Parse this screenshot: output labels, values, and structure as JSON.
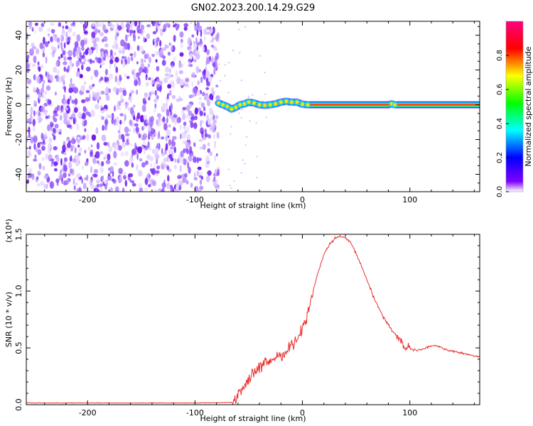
{
  "title": "GN02.2023.200.14.29.G29",
  "chart_data": [
    {
      "type": "heatmap",
      "xlabel": "Height of straight line (km)",
      "ylabel": "Frequency (Hz)",
      "xlim": [
        -257,
        165
      ],
      "ylim": [
        -50,
        48
      ],
      "x_ticks": [
        -200,
        -100,
        0,
        100
      ],
      "x_tick_labels": [
        "-200",
        "-100",
        "0",
        "100"
      ],
      "y_ticks": [
        -40,
        -20,
        0,
        20,
        40
      ],
      "y_tick_labels": [
        "-40",
        "-20",
        "0",
        "20",
        "40"
      ],
      "noise_region_x": [
        -257,
        -78
      ],
      "signal_track": {
        "x": [
          -78,
          -74,
          -70,
          -66,
          -62,
          -58,
          -54,
          -50,
          -45,
          -40,
          -35,
          -30,
          -25,
          -20,
          -15,
          -10,
          -5,
          0,
          5,
          20,
          40,
          60,
          80,
          83,
          86,
          100,
          120,
          140,
          165
        ],
        "freq": [
          1,
          0,
          -1,
          -2.5,
          -1.5,
          0,
          0.5,
          1.5,
          1,
          0,
          -0.3,
          0,
          0.5,
          1.5,
          2,
          1.5,
          1.5,
          0.3,
          0,
          0,
          0,
          0,
          0,
          0.5,
          0,
          0,
          0,
          0,
          0
        ]
      },
      "colorbar": {
        "label": "Normalized spectral amplitude",
        "range": [
          0,
          1
        ],
        "ticks": [
          0.0,
          0.2,
          0.4,
          0.6,
          0.8
        ],
        "tick_labels": [
          "0.0",
          "0.2",
          "0.4",
          "0.6",
          "0.8"
        ],
        "colors": [
          "#ffffff",
          "#8000ff",
          "#0000ff",
          "#00ffff",
          "#00ff00",
          "#ffff00",
          "#ff0000",
          "#ff0080"
        ]
      }
    },
    {
      "type": "line",
      "xlabel": "Height of straight line (km)",
      "ylabel": "SNR (10 * v/v)",
      "y_multiplier": "(x10⁴)",
      "xlim": [
        -257,
        165
      ],
      "ylim": [
        0,
        1.5
      ],
      "x_ticks": [
        -200,
        -100,
        0,
        100
      ],
      "x_tick_labels": [
        "-200",
        "-100",
        "0",
        "100"
      ],
      "y_ticks": [
        0.0,
        0.5,
        1.0,
        1.5
      ],
      "y_tick_labels": [
        "0.0",
        "0.5",
        "1.0",
        "1.5"
      ],
      "color": "#e8312f",
      "series": [
        {
          "x": [
            -257,
            -100,
            -65,
            -60,
            -55,
            -50,
            -45,
            -40,
            -35,
            -30,
            -25,
            -20,
            -15,
            -10,
            -5,
            0,
            5,
            10,
            15,
            20,
            25,
            30,
            35,
            40,
            45,
            50,
            55,
            60,
            65,
            70,
            75,
            80,
            85,
            90,
            93,
            95,
            98,
            100,
            105,
            110,
            115,
            120,
            125,
            130,
            135,
            140,
            145,
            150,
            155,
            160,
            165
          ],
          "y": [
            0.015,
            0.015,
            0.02,
            0.08,
            0.16,
            0.22,
            0.28,
            0.32,
            0.36,
            0.38,
            0.42,
            0.44,
            0.47,
            0.52,
            0.58,
            0.67,
            0.82,
            1.0,
            1.18,
            1.32,
            1.41,
            1.46,
            1.48,
            1.47,
            1.42,
            1.33,
            1.22,
            1.1,
            0.98,
            0.87,
            0.78,
            0.7,
            0.64,
            0.58,
            0.55,
            0.5,
            0.5,
            0.49,
            0.48,
            0.48,
            0.5,
            0.52,
            0.52,
            0.5,
            0.48,
            0.47,
            0.46,
            0.45,
            0.44,
            0.43,
            0.42
          ]
        }
      ]
    }
  ]
}
